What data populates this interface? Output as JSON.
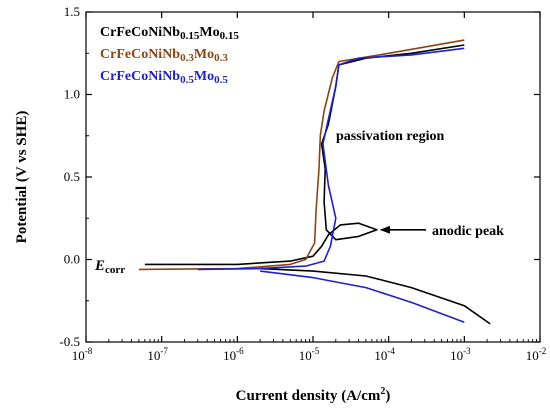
{
  "chart_data": {
    "type": "line",
    "xlabel": "Current density (A/cm",
    "xlabel_sup": "2",
    "xlabel_tail": ")",
    "ylabel": "Potential (V vs SHE)",
    "x_scale": "log",
    "xlim": [
      1e-08,
      0.01
    ],
    "ylim": [
      -0.5,
      1.5
    ],
    "x_ticks": [
      {
        "base": "10",
        "exp": "-8",
        "value": 1e-08
      },
      {
        "base": "10",
        "exp": "-7",
        "value": 1e-07
      },
      {
        "base": "10",
        "exp": "-6",
        "value": 1e-06
      },
      {
        "base": "10",
        "exp": "-5",
        "value": 1e-05
      },
      {
        "base": "10",
        "exp": "-4",
        "value": 0.0001
      },
      {
        "base": "10",
        "exp": "-3",
        "value": 0.001
      },
      {
        "base": "10",
        "exp": "-2",
        "value": 0.01
      }
    ],
    "y_ticks": [
      {
        "label": "-0.5",
        "value": -0.5
      },
      {
        "label": "0.0",
        "value": 0.0
      },
      {
        "label": "0.5",
        "value": 0.5
      },
      {
        "label": "1.0",
        "value": 1.0
      },
      {
        "label": "1.5",
        "value": 1.5
      }
    ],
    "grid": false,
    "legend_position": "top-left",
    "series": [
      {
        "name_parts": [
          {
            "t": "CrFeCoNiNb",
            "sub": false
          },
          {
            "t": "0.15",
            "sub": true
          },
          {
            "t": "Mo",
            "sub": false
          },
          {
            "t": "0.15",
            "sub": true
          }
        ],
        "color": "#000000",
        "points": [
          [
            6e-08,
            -0.03
          ],
          [
            1e-06,
            -0.03
          ],
          [
            5e-06,
            -0.01
          ],
          [
            1e-05,
            0.02
          ],
          [
            1.3e-05,
            0.08
          ],
          [
            1.6e-05,
            0.15
          ],
          [
            2.3e-05,
            0.21
          ],
          [
            4e-05,
            0.22
          ],
          [
            7e-05,
            0.18
          ],
          [
            4e-05,
            0.14
          ],
          [
            2e-05,
            0.12
          ],
          [
            1.5e-05,
            0.18
          ],
          [
            1.4e-05,
            0.35
          ],
          [
            1.45e-05,
            0.55
          ],
          [
            1.3e-05,
            0.7
          ],
          [
            1.6e-05,
            0.82
          ],
          [
            2e-05,
            1.05
          ],
          [
            2.2e-05,
            1.18
          ],
          [
            5e-05,
            1.22
          ],
          [
            0.0002,
            1.25
          ],
          [
            0.001,
            1.3
          ],
          null,
          [
            2e-06,
            -0.055
          ],
          [
            1e-05,
            -0.07
          ],
          [
            5e-05,
            -0.1
          ],
          [
            0.0002,
            -0.17
          ],
          [
            0.001,
            -0.28
          ],
          [
            0.0022,
            -0.39
          ]
        ]
      },
      {
        "name_parts": [
          {
            "t": "CrFeCoNiNb",
            "sub": false
          },
          {
            "t": "0.3",
            "sub": true
          },
          {
            "t": "Mo",
            "sub": false
          },
          {
            "t": "0.3",
            "sub": true
          }
        ],
        "color": "#8B4513",
        "points": [
          [
            5e-08,
            -0.06
          ],
          [
            1e-06,
            -0.055
          ],
          [
            5e-06,
            -0.03
          ],
          [
            8e-06,
            0.0
          ],
          [
            1.05e-05,
            0.1
          ],
          [
            1.1e-05,
            0.3
          ],
          [
            1.2e-05,
            0.55
          ],
          [
            1.25e-05,
            0.75
          ],
          [
            1.4e-05,
            0.9
          ],
          [
            1.8e-05,
            1.1
          ],
          [
            2.2e-05,
            1.2
          ],
          [
            0.0001,
            1.25
          ],
          [
            0.001,
            1.33
          ]
        ]
      },
      {
        "name_parts": [
          {
            "t": "CrFeCoNiNb",
            "sub": false
          },
          {
            "t": "0.5",
            "sub": true
          },
          {
            "t": "Mo",
            "sub": false
          },
          {
            "t": "0.5",
            "sub": true
          }
        ],
        "color": "#1f1fcf",
        "points": [
          [
            3e-07,
            -0.06
          ],
          [
            2e-06,
            -0.055
          ],
          [
            8e-06,
            -0.04
          ],
          [
            1.4e-05,
            -0.01
          ],
          [
            1.7e-05,
            0.08
          ],
          [
            2e-05,
            0.25
          ],
          [
            1.6e-05,
            0.45
          ],
          [
            1.35e-05,
            0.7
          ],
          [
            1.6e-05,
            0.85
          ],
          [
            2e-05,
            1.05
          ],
          [
            2.2e-05,
            1.18
          ],
          [
            4e-05,
            1.22
          ],
          [
            0.0002,
            1.24
          ],
          [
            0.001,
            1.28
          ],
          null,
          [
            2e-06,
            -0.07
          ],
          [
            1e-05,
            -0.11
          ],
          [
            5e-05,
            -0.17
          ],
          [
            0.0002,
            -0.26
          ],
          [
            0.001,
            -0.38
          ]
        ]
      }
    ],
    "annotations": {
      "passivation": "passivation region",
      "anodic_peak": "anodic peak",
      "arrow_target": [
        7e-05,
        0.18
      ],
      "ecorr_main": "E",
      "ecorr_sub": "corr"
    }
  }
}
